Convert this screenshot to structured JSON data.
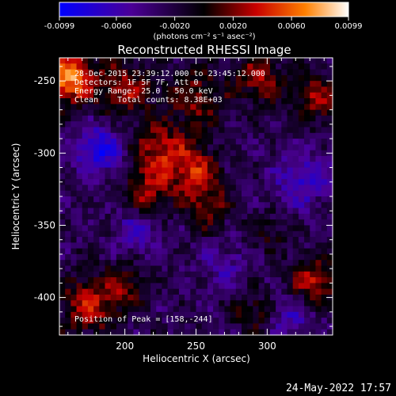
{
  "colorbar": {
    "ticks": [
      "-0.0099",
      "-0.0060",
      "-0.0020",
      "0.0020",
      "0.0060",
      "0.0099"
    ],
    "tick_values": [
      -0.0099,
      -0.006,
      -0.002,
      0.002,
      0.006,
      0.0099
    ],
    "unit_label": "(photons cm⁻² s⁻¹ asec⁻²)",
    "range": [
      -0.0099,
      0.0099
    ],
    "colors": [
      "#0000ff",
      "#4b0096",
      "#000000",
      "#c80000",
      "#ff8000",
      "#ffffff"
    ]
  },
  "info": {
    "time_range": "28-Dec-2015 23:39:12.000 to 23:45:12.000",
    "detectors": "Detectors: 1F 5F 7F, Att 0",
    "energy": "Energy Range: 25.0 - 50.0 keV",
    "clean": "Clean    Total counts: 8.38E+03",
    "peak": "Position of Peak = [158,-244]"
  },
  "footer": {
    "date": "24-May-2022 17:57"
  },
  "chart_data": {
    "type": "heatmap",
    "title": "Reconstructed RHESSI Image",
    "xlabel": "Heliocentric X (arcsec)",
    "ylabel": "Heliocentric Y (arcsec)",
    "xlim": [
      154,
      346
    ],
    "ylim": [
      -426,
      -234
    ],
    "xticks": [
      200,
      250,
      300
    ],
    "yticks": [
      -250,
      -300,
      -350,
      -400
    ],
    "grid": false,
    "peak": [
      158,
      -244
    ],
    "zrange": [
      -0.0099,
      0.0099
    ],
    "sources": [
      {
        "x": 160,
        "y": -248,
        "amp": 0.0099,
        "sigma": 12
      },
      {
        "x": 200,
        "y": -255,
        "amp": 0.005,
        "sigma": 14
      },
      {
        "x": 250,
        "y": -262,
        "amp": 0.0045,
        "sigma": 14
      },
      {
        "x": 295,
        "y": -248,
        "amp": 0.0048,
        "sigma": 12
      },
      {
        "x": 335,
        "y": -262,
        "amp": 0.005,
        "sigma": 12
      },
      {
        "x": 225,
        "y": -300,
        "amp": 0.006,
        "sigma": 14
      },
      {
        "x": 250,
        "y": -312,
        "amp": 0.0055,
        "sigma": 12
      },
      {
        "x": 215,
        "y": -330,
        "amp": 0.005,
        "sigma": 12
      },
      {
        "x": 258,
        "y": -338,
        "amp": 0.0045,
        "sigma": 11
      },
      {
        "x": 175,
        "y": -405,
        "amp": 0.006,
        "sigma": 14
      },
      {
        "x": 200,
        "y": -392,
        "amp": 0.004,
        "sigma": 10
      },
      {
        "x": 332,
        "y": -390,
        "amp": 0.006,
        "sigma": 12
      },
      {
        "x": 290,
        "y": -410,
        "amp": 0.0035,
        "sigma": 10
      },
      {
        "x": 300,
        "y": -355,
        "amp": 0.0025,
        "sigma": 10
      },
      {
        "x": 182,
        "y": -298,
        "amp": -0.006,
        "sigma": 12
      },
      {
        "x": 210,
        "y": -352,
        "amp": -0.004,
        "sigma": 12
      },
      {
        "x": 325,
        "y": -318,
        "amp": -0.004,
        "sigma": 14
      },
      {
        "x": 318,
        "y": -412,
        "amp": -0.0035,
        "sigma": 12
      },
      {
        "x": 270,
        "y": -378,
        "amp": -0.0025,
        "sigma": 12
      }
    ]
  }
}
